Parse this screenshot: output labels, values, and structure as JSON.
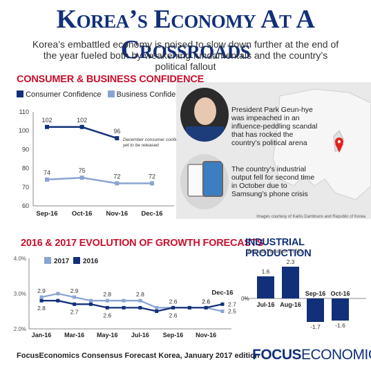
{
  "header": {
    "title": "Korea’s Economy At A Crossroads",
    "subtitle": "Korea’s embattled economy is poised to slow down further at the end of the year fueled both by weakening fundamentals and the country’s political fallout"
  },
  "panel": {
    "caption1": "President Park Geun-hye was impeached in an influence-peddling scandal that has rocked the country’s political arena",
    "caption2": "The country’s industrial output fell for second time in October due to Samsung’s phone crisis",
    "credits": "Images courtesy of Karlis Dambrans and Republic of Korea"
  },
  "footer": {
    "source": "FocusEconomics Consensus Forecast Korea, January 2017 edition",
    "logo_bold": "FOCUS",
    "logo_rest": "ECONOMICS"
  },
  "colors": {
    "navy": "#12307a",
    "light": "#8aa4d2",
    "red": "#c8102e"
  },
  "chart_data": [
    {
      "id": "confidence",
      "type": "line",
      "title": "CONSUMER & BUSINESS CONFIDENCE",
      "categories": [
        "Sep-16",
        "Oct-16",
        "Nov-16",
        "Dec-16"
      ],
      "ylim": [
        60,
        110
      ],
      "yticks": [
        "60",
        "70",
        "80",
        "90",
        "100",
        "110"
      ],
      "series": [
        {
          "name": "Consumer Confidence",
          "values": [
            102,
            102,
            96,
            null
          ],
          "labels": [
            "102",
            "102",
            "96",
            ""
          ]
        },
        {
          "name": "Business Confidence",
          "values": [
            74,
            75,
            72,
            72
          ],
          "labels": [
            "74",
            "75",
            "72",
            "72"
          ]
        }
      ],
      "annotation": "December consumer confidence data yet to be released"
    },
    {
      "id": "forecasts",
      "type": "line",
      "title": "2016 & 2017 EVOLUTION OF GROWTH FORECASTS",
      "categories": [
        "Jan-16",
        "Feb-16",
        "Mar-16",
        "Apr-16",
        "May-16",
        "Jun-16",
        "Jul-16",
        "Aug-16",
        "Sep-16",
        "Oct-16",
        "Nov-16",
        "Dec-16"
      ],
      "tick_labels": [
        "Jan-16",
        "Mar-16",
        "May-16",
        "Jul-16",
        "Sep-16",
        "Nov-16"
      ],
      "ylim": [
        2.0,
        4.0
      ],
      "yticks": [
        "2.0%",
        "3.0%",
        "4.0%"
      ],
      "end_label": "Dec-16",
      "series": [
        {
          "name": "2017",
          "values": [
            2.9,
            3.0,
            2.9,
            2.8,
            2.8,
            2.8,
            2.8,
            2.6,
            2.6,
            2.6,
            2.6,
            2.5
          ]
        },
        {
          "name": "2016",
          "values": [
            2.8,
            2.8,
            2.7,
            2.7,
            2.6,
            2.6,
            2.6,
            2.5,
            2.6,
            2.6,
            2.6,
            2.7
          ]
        }
      ],
      "labels_2017": [
        {
          "i": 0,
          "text": "2.9"
        },
        {
          "i": 2,
          "text": "2.9"
        },
        {
          "i": 4,
          "text": "2.8"
        },
        {
          "i": 6,
          "text": "2.8"
        },
        {
          "i": 10,
          "text": "2.6"
        },
        {
          "i": 11,
          "text": "2.5"
        }
      ],
      "labels_2016": [
        {
          "i": 0,
          "text": "2.8"
        },
        {
          "i": 2,
          "text": "2.7"
        },
        {
          "i": 4,
          "text": "2.6"
        },
        {
          "i": 8,
          "text": "2.6"
        },
        {
          "i": 11,
          "text": "2.7"
        }
      ],
      "mid_label_2017": {
        "i": 8,
        "text": "2.6"
      },
      "mid_label_2016": {
        "i": 10,
        "text": "2.6"
      }
    },
    {
      "id": "industrial",
      "type": "bar",
      "title": "INDUSTRIAL PRODUCTION",
      "subtitle": "(Annual Variation in %)",
      "categories": [
        "Jul-16",
        "Aug-16",
        "Sep-16",
        "Oct-16"
      ],
      "values": [
        1.6,
        2.3,
        -1.7,
        -1.6
      ],
      "labels": [
        "1.6",
        "2.3",
        "-1.7",
        "-1.6"
      ],
      "zero_label": "0%"
    }
  ]
}
